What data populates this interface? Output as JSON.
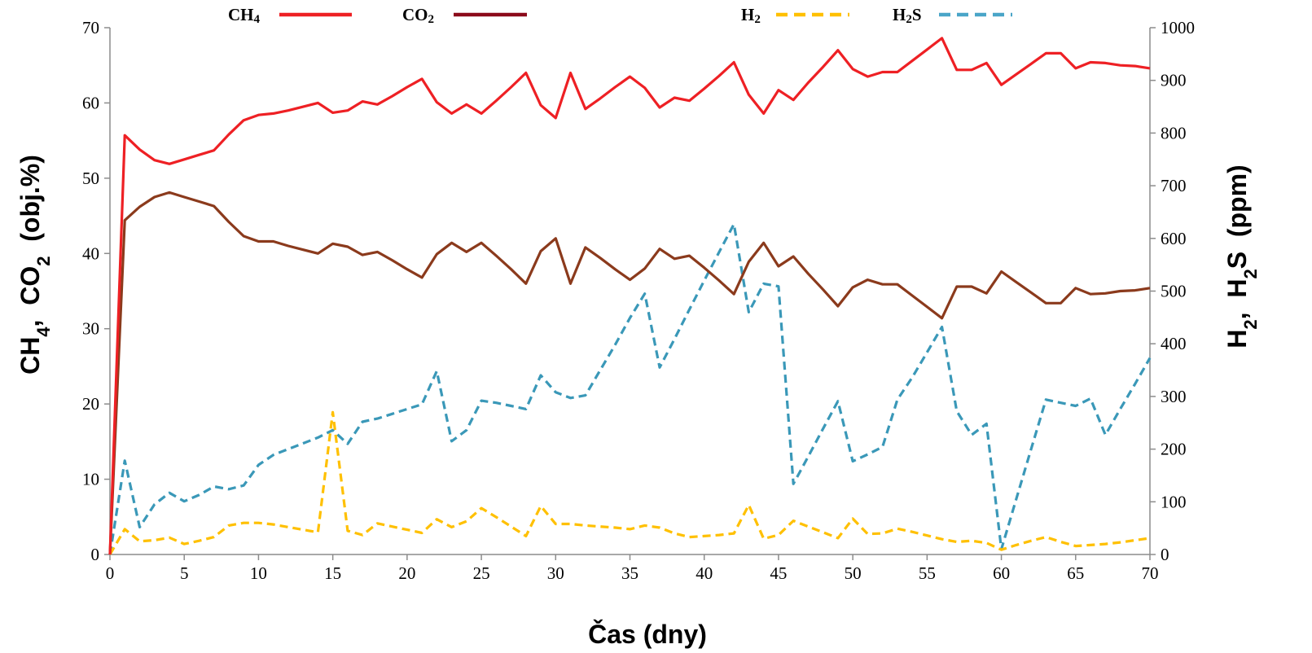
{
  "chart_data": {
    "type": "line",
    "xlabel": "Čas (dny)",
    "ylabel_left": {
      "main": "CH",
      "sub1": "4",
      "sep": ",  CO",
      "sub2": "2",
      "tail": "  (obj.%)"
    },
    "ylabel_right": {
      "main": "H",
      "sub1": "2",
      "sep": ",  H",
      "sub2": "2",
      "tail": "S  (ppm)"
    },
    "xlim": [
      0,
      70
    ],
    "ylim_left": [
      0,
      70
    ],
    "ylim_right": [
      0,
      1000
    ],
    "xticks": [
      0,
      5,
      10,
      15,
      20,
      25,
      30,
      35,
      40,
      45,
      50,
      55,
      60,
      65,
      70
    ],
    "yticks_left": [
      0,
      10,
      20,
      30,
      40,
      50,
      60,
      70
    ],
    "yticks_right": [
      0,
      100,
      200,
      300,
      400,
      500,
      600,
      700,
      800,
      900,
      1000
    ],
    "grid": false,
    "legend_position": "top",
    "series": [
      {
        "name": "CH4",
        "label_main": "CH",
        "label_sub": "4",
        "label_tail": "",
        "axis": "left",
        "color": "#ee2024",
        "dashed": false,
        "x": [
          0,
          1,
          2,
          3,
          4,
          5,
          6,
          7,
          8,
          9,
          10,
          11,
          12,
          13,
          14,
          15,
          16,
          17,
          18,
          19,
          20,
          21,
          22,
          23,
          24,
          25,
          26,
          27,
          28,
          29,
          30,
          31,
          32,
          33,
          34,
          35,
          36,
          37,
          38,
          39,
          40,
          41,
          42,
          43,
          44,
          45,
          46,
          47,
          48,
          49,
          50,
          51,
          52,
          53,
          54,
          55,
          56,
          57,
          58,
          59,
          60,
          61,
          62,
          63,
          64,
          65,
          66,
          67,
          68,
          69,
          70
        ],
        "y": [
          0,
          55.7,
          53.8,
          52.4,
          51.9,
          52.5,
          53.1,
          53.7,
          55.8,
          57.7,
          58.4,
          58.6,
          59.0,
          59.5,
          60.0,
          58.7,
          59.0,
          60.2,
          59.8,
          60.9,
          62.1,
          63.2,
          60.1,
          58.6,
          59.8,
          58.6,
          60.3,
          62.1,
          64.0,
          59.7,
          58.0,
          64.0,
          59.2,
          60.6,
          62.1,
          63.5,
          62.0,
          59.4,
          60.7,
          60.3,
          61.9,
          63.6,
          65.4,
          61.1,
          58.6,
          61.7,
          60.4,
          62.7,
          64.8,
          67.0,
          64.5,
          63.5,
          64.1,
          64.1,
          65.6,
          67.1,
          68.6,
          64.4,
          64.4,
          65.3,
          62.4,
          63.8,
          65.2,
          66.6,
          66.6,
          64.6,
          65.4,
          65.3,
          65.0,
          64.9,
          64.6
        ]
      },
      {
        "name": "CO2",
        "label_main": "CO",
        "label_sub": "2",
        "label_tail": "",
        "axis": "left",
        "color": "#8b3a1c",
        "legend_color": "#8b0a1a",
        "dashed": false,
        "x": [
          0,
          1,
          2,
          3,
          4,
          5,
          6,
          7,
          8,
          9,
          10,
          11,
          12,
          13,
          14,
          15,
          16,
          17,
          18,
          19,
          20,
          21,
          22,
          23,
          24,
          25,
          26,
          27,
          28,
          29,
          30,
          31,
          32,
          33,
          34,
          35,
          36,
          37,
          38,
          39,
          40,
          41,
          42,
          43,
          44,
          45,
          46,
          47,
          48,
          49,
          50,
          51,
          52,
          53,
          54,
          55,
          56,
          57,
          58,
          59,
          60,
          61,
          62,
          63,
          64,
          65,
          66,
          67,
          68,
          69,
          70
        ],
        "y": [
          0,
          44.4,
          46.2,
          47.5,
          48.1,
          47.5,
          46.9,
          46.3,
          44.2,
          42.3,
          41.6,
          41.6,
          41.0,
          40.5,
          40.0,
          41.3,
          40.9,
          39.8,
          40.2,
          39.1,
          37.9,
          36.8,
          39.9,
          41.4,
          40.2,
          41.4,
          39.7,
          37.9,
          36.0,
          40.3,
          42.0,
          36.0,
          40.8,
          39.4,
          37.9,
          36.5,
          38.0,
          40.6,
          39.3,
          39.7,
          38.1,
          36.4,
          34.6,
          38.9,
          41.4,
          38.3,
          39.6,
          37.3,
          35.2,
          33.0,
          35.5,
          36.5,
          35.9,
          35.9,
          34.4,
          32.9,
          31.4,
          35.6,
          35.6,
          34.7,
          37.6,
          36.2,
          34.8,
          33.4,
          33.4,
          35.4,
          34.6,
          34.7,
          35.0,
          35.1,
          35.4
        ]
      },
      {
        "name": "H2",
        "label_main": "H",
        "label_sub": "2",
        "label_tail": "",
        "axis": "right",
        "color": "#ffc000",
        "dashed": true,
        "x": [
          0,
          1,
          2,
          3,
          4,
          5,
          6,
          7,
          8,
          9,
          10,
          11,
          12,
          13,
          14,
          15,
          16,
          17,
          18,
          19,
          20,
          21,
          22,
          23,
          24,
          25,
          26,
          27,
          28,
          29,
          30,
          31,
          32,
          33,
          34,
          35,
          36,
          37,
          38,
          39,
          40,
          41,
          42,
          43,
          44,
          45,
          46,
          47,
          48,
          49,
          50,
          51,
          52,
          53,
          54,
          55,
          56,
          57,
          58,
          59,
          60,
          61,
          62,
          63,
          64,
          65,
          66,
          67,
          68,
          69,
          70
        ],
        "y": [
          0,
          48,
          25,
          27,
          32,
          20,
          26,
          33,
          55,
          60,
          60,
          57,
          52,
          47,
          42,
          270,
          45,
          37,
          59,
          53,
          47,
          41,
          67,
          52,
          63,
          88,
          71,
          53,
          35,
          92,
          58,
          58,
          55,
          53,
          51,
          48,
          55,
          51,
          40,
          33,
          35,
          37,
          40,
          94,
          30,
          37,
          64,
          53,
          42,
          31,
          68,
          39,
          40,
          49,
          43,
          36,
          29,
          24,
          26,
          22,
          9,
          18,
          26,
          33,
          24,
          16,
          18,
          20,
          23,
          27,
          31
        ]
      },
      {
        "name": "H2S",
        "label_main": "H",
        "label_sub": "2",
        "label_tail": "S",
        "axis": "right",
        "color": "#3a98b8",
        "legend_color": "#4aa5c8",
        "dashed": true,
        "x": [
          0,
          1,
          2,
          3,
          4,
          5,
          6,
          7,
          8,
          9,
          10,
          11,
          12,
          13,
          14,
          15,
          16,
          17,
          18,
          19,
          20,
          21,
          22,
          23,
          24,
          25,
          26,
          27,
          28,
          29,
          30,
          31,
          32,
          33,
          34,
          35,
          36,
          37,
          38,
          39,
          40,
          41,
          42,
          43,
          44,
          45,
          46,
          47,
          48,
          49,
          50,
          51,
          52,
          53,
          54,
          55,
          56,
          57,
          58,
          59,
          60,
          61,
          62,
          63,
          64,
          65,
          66,
          67,
          68,
          69,
          70
        ],
        "y": [
          0,
          178,
          52,
          95,
          117,
          101,
          113,
          129,
          124,
          131,
          170,
          189,
          200,
          211,
          222,
          236,
          210,
          252,
          258,
          267,
          276,
          285,
          348,
          215,
          236,
          292,
          288,
          282,
          276,
          340,
          308,
          297,
          302,
          350,
          398,
          449,
          495,
          355,
          409,
          465,
          520,
          574,
          627,
          460,
          514,
          509,
          134,
          186,
          239,
          291,
          177,
          190,
          204,
          294,
          336,
          384,
          432,
          272,
          227,
          248,
          10,
          105,
          200,
          294,
          288,
          282,
          296,
          227,
          276,
          324,
          373
        ]
      }
    ]
  }
}
